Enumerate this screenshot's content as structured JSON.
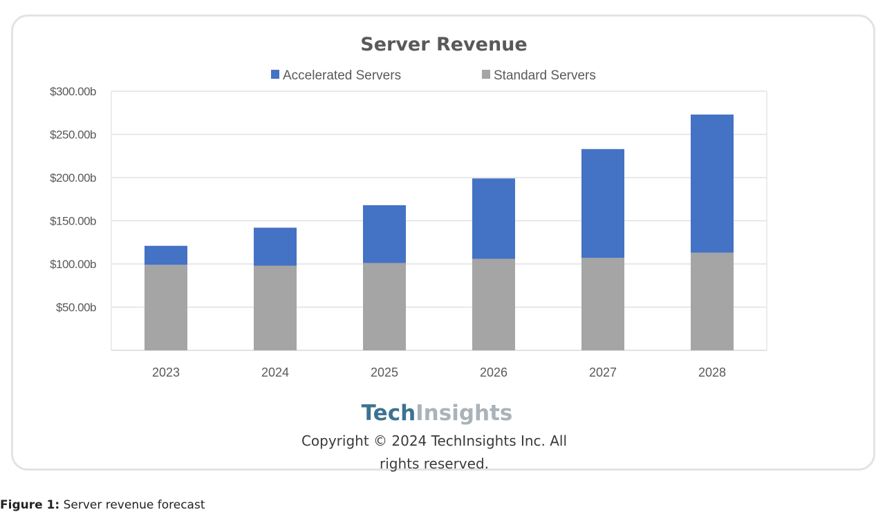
{
  "chart_data": {
    "type": "bar",
    "stacked": true,
    "title": "Server Revenue",
    "xlabel": "",
    "ylabel": "",
    "categories": [
      "2023",
      "2024",
      "2025",
      "2026",
      "2027",
      "2028"
    ],
    "series": [
      {
        "name": "Standard Servers",
        "color": "#a5a5a5",
        "values": [
          99,
          98,
          101,
          106,
          107,
          113
        ]
      },
      {
        "name": "Accelerated Servers",
        "color": "#4472c4",
        "values": [
          22,
          44,
          67,
          93,
          126,
          160
        ]
      }
    ],
    "legend_order": [
      "Accelerated Servers",
      "Standard Servers"
    ],
    "legend_position": "top",
    "ylim": [
      0,
      300
    ],
    "yticks": [
      50,
      100,
      150,
      200,
      250,
      300
    ],
    "ytick_labels": [
      "$50.00b",
      "$100.00b",
      "$150.00b",
      "$200.00b",
      "$250.00b",
      "$300.00b"
    ],
    "grid": true
  },
  "branding": {
    "logo_part1": "Tech",
    "logo_part2": "Insights",
    "copyright_line1": "Copyright © 2024 TechInsights Inc.  All",
    "copyright_line2": "rights reserved."
  },
  "caption": {
    "label": "Figure 1:",
    "text": " Server revenue forecast"
  }
}
